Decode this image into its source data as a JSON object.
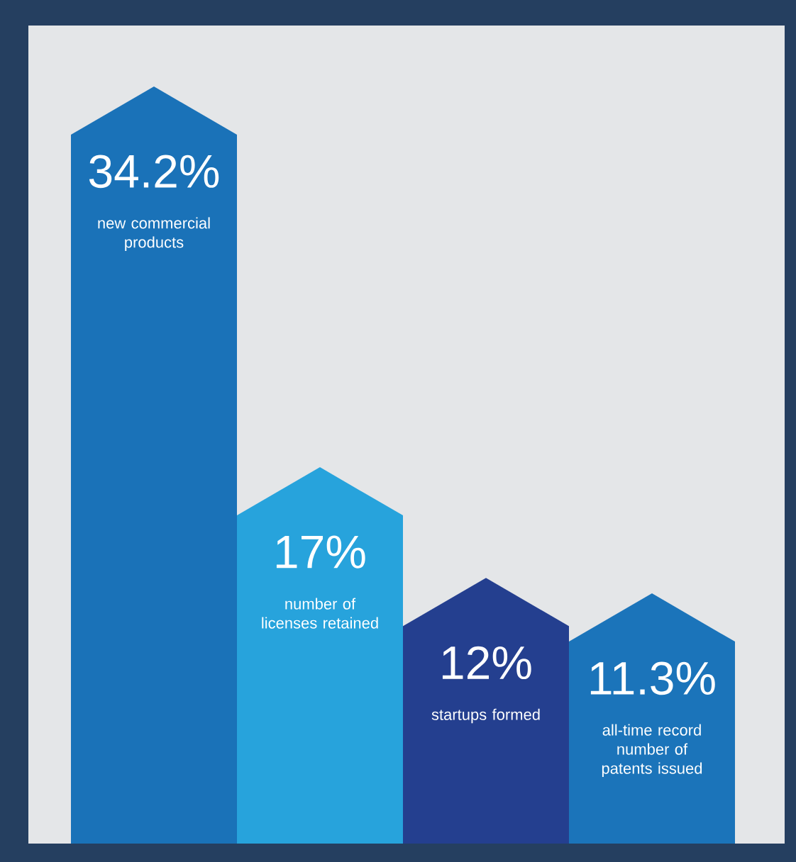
{
  "chart_data": {
    "type": "bar",
    "categories": [
      "new commercial products",
      "number of licenses retained",
      "startups formed",
      "all-time record number of patents issued"
    ],
    "values": [
      34.2,
      17,
      12,
      11.3
    ],
    "value_labels": [
      "34.2%",
      "17%",
      "12%",
      "11.3%"
    ],
    "colors": [
      "#1a72b8",
      "#27a3dc",
      "#243f8f",
      "#1b74ba"
    ]
  }
}
